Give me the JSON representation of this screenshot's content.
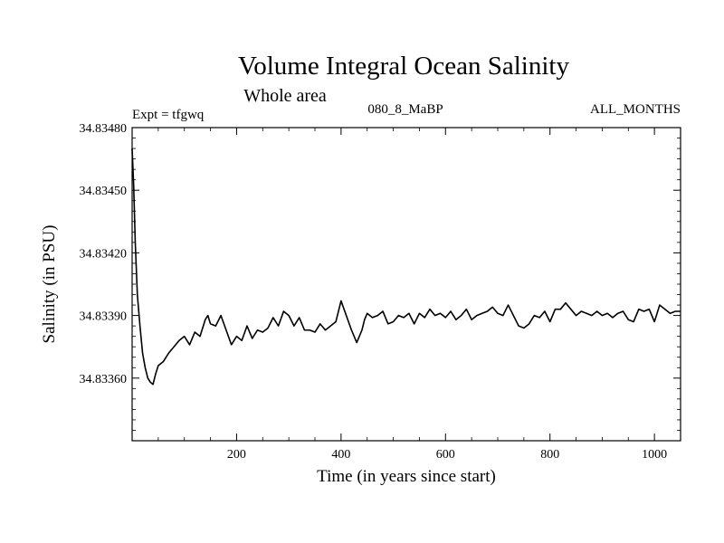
{
  "chart_data": {
    "type": "line",
    "title": "Volume Integral Ocean Salinity",
    "subtitle": "Whole area",
    "experiment_label": "Expt = tfgwq",
    "run_label": "080_8_MaBP",
    "months_label": "ALL_MONTHS",
    "xlabel": "Time (in years since start)",
    "ylabel": "Salinity (in PSU)",
    "xlim": [
      0,
      1050
    ],
    "ylim": [
      34.8333,
      34.8348
    ],
    "x_ticks": [
      200,
      400,
      600,
      800,
      1000
    ],
    "x_tick_labels": [
      "200",
      "400",
      "600",
      "800",
      "1000"
    ],
    "y_ticks": [
      34.8336,
      34.8339,
      34.8342,
      34.8345,
      34.8348
    ],
    "y_tick_labels": [
      "34.83360",
      "34.83390",
      "34.83420",
      "34.83450",
      "34.83480"
    ],
    "grid": false,
    "series": [
      {
        "name": "Salinity",
        "x": [
          0,
          3,
          6,
          10,
          15,
          20,
          25,
          30,
          35,
          40,
          45,
          50,
          60,
          70,
          80,
          90,
          100,
          110,
          120,
          130,
          140,
          145,
          150,
          160,
          170,
          180,
          190,
          200,
          210,
          220,
          230,
          240,
          250,
          260,
          270,
          280,
          290,
          300,
          310,
          320,
          330,
          340,
          350,
          360,
          370,
          380,
          390,
          400,
          410,
          420,
          430,
          440,
          445,
          450,
          460,
          470,
          480,
          490,
          500,
          510,
          520,
          530,
          540,
          550,
          560,
          570,
          580,
          590,
          600,
          610,
          620,
          630,
          640,
          650,
          660,
          670,
          680,
          690,
          700,
          710,
          720,
          730,
          740,
          750,
          760,
          770,
          780,
          790,
          800,
          810,
          820,
          830,
          840,
          850,
          860,
          870,
          880,
          890,
          900,
          910,
          920,
          930,
          940,
          950,
          960,
          970,
          980,
          990,
          1000,
          1010,
          1020,
          1030,
          1040,
          1050
        ],
        "values": [
          34.8347,
          34.83452,
          34.83425,
          34.834,
          34.83385,
          34.83372,
          34.83365,
          34.8336,
          34.83358,
          34.83357,
          34.83362,
          34.83366,
          34.83368,
          34.83372,
          34.83375,
          34.83378,
          34.8338,
          34.83376,
          34.83382,
          34.8338,
          34.83388,
          34.8339,
          34.83386,
          34.83385,
          34.8339,
          34.83383,
          34.83376,
          34.8338,
          34.83378,
          34.83385,
          34.83379,
          34.83383,
          34.83382,
          34.83384,
          34.83389,
          34.83385,
          34.83392,
          34.8339,
          34.83385,
          34.83389,
          34.83383,
          34.83383,
          34.83382,
          34.83386,
          34.83383,
          34.83385,
          34.83387,
          34.83397,
          34.8339,
          34.83383,
          34.83377,
          34.83383,
          34.83388,
          34.83391,
          34.83389,
          34.8339,
          34.83392,
          34.83386,
          34.83387,
          34.8339,
          34.83389,
          34.83391,
          34.83386,
          34.83391,
          34.83389,
          34.83393,
          34.8339,
          34.83391,
          34.83389,
          34.83392,
          34.83388,
          34.8339,
          34.83393,
          34.83388,
          34.8339,
          34.83391,
          34.83392,
          34.83394,
          34.83391,
          34.8339,
          34.83395,
          34.8339,
          34.83385,
          34.83384,
          34.83386,
          34.8339,
          34.83389,
          34.83392,
          34.83387,
          34.83393,
          34.83393,
          34.83396,
          34.83393,
          34.8339,
          34.83392,
          34.83391,
          34.8339,
          34.83392,
          34.8339,
          34.83391,
          34.83389,
          34.83391,
          34.83392,
          34.83388,
          34.83387,
          34.83393,
          34.83392,
          34.83393,
          34.83387,
          34.83395,
          34.83393,
          34.83391,
          34.83392,
          34.83392
        ]
      }
    ]
  }
}
